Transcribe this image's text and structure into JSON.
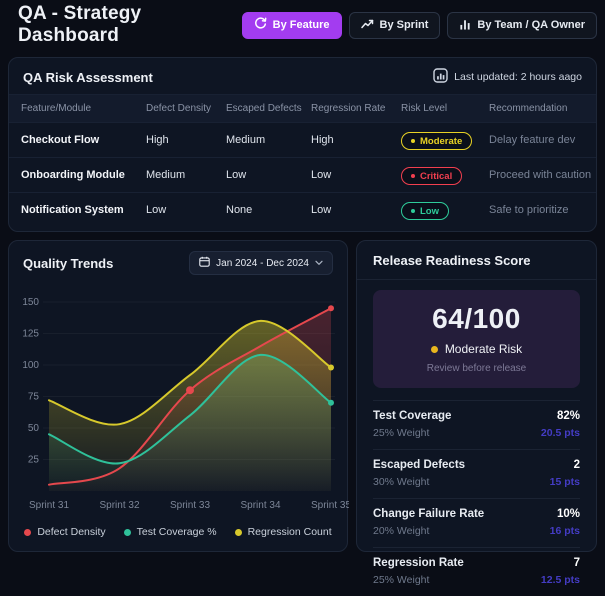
{
  "colors": {
    "accent": "#a33cf0",
    "moderate": "#e8d225",
    "critical": "#f23f4f",
    "low": "#2ecc9a",
    "pts": "#443cc4"
  },
  "header": {
    "title": "QA - Strategy Dashboard",
    "buttons": [
      {
        "label": "By Feature",
        "icon": "refresh-icon",
        "active": true
      },
      {
        "label": "By Sprint",
        "icon": "trend-icon",
        "active": false
      },
      {
        "label": "By Team / QA Owner",
        "icon": "bar-chart-icon",
        "active": false
      }
    ]
  },
  "risk_panel": {
    "title": "QA Risk Assessment",
    "last_updated": "Last updated: 2 hours aago",
    "columns": [
      "Feature/Module",
      "Defect Density",
      "Escaped Defects",
      "Regression Rate",
      "Risk Level",
      "Recommendation"
    ],
    "rows": [
      {
        "feature": "Checkout Flow",
        "defect_density": "High",
        "escaped_defects": "Medium",
        "regression_rate": "High",
        "risk": "Moderate",
        "risk_color": "#e8d225",
        "recommendation": "Delay feature dev"
      },
      {
        "feature": "Onboarding Module",
        "defect_density": "Medium",
        "escaped_defects": "Low",
        "regression_rate": "Low",
        "risk": "Critical",
        "risk_color": "#f23f4f",
        "recommendation": "Proceed with caution"
      },
      {
        "feature": "Notification System",
        "defect_density": "Low",
        "escaped_defects": "None",
        "regression_rate": "Low",
        "risk": "Low",
        "risk_color": "#2ecc9a",
        "recommendation": "Safe to prioritize"
      }
    ]
  },
  "trends_panel": {
    "title": "Quality Trends",
    "date_range": "Jan 2024 - Dec 2024"
  },
  "chart_data": {
    "type": "line",
    "title": "Quality Trends",
    "categories": [
      "Sprint 31",
      "Sprint 32",
      "Sprint 33",
      "Sprint 34",
      "Sprint 35"
    ],
    "series": [
      {
        "name": "Defect Density",
        "color": "#e5484d",
        "fill_opacity": 0.28,
        "values": [
          5,
          18,
          80,
          115,
          145
        ],
        "marker_index": 2
      },
      {
        "name": "Test Coverage %",
        "color": "#2fc19a",
        "fill_opacity": 0.3,
        "values": [
          45,
          22,
          60,
          108,
          70
        ]
      },
      {
        "name": "Regression Count",
        "color": "#d7c92c",
        "fill_opacity": 0.42,
        "values": [
          72,
          53,
          92,
          135,
          98
        ]
      }
    ],
    "ylim": [
      0,
      150
    ],
    "yticks": [
      25,
      50,
      75,
      100,
      125,
      150
    ],
    "grid": true,
    "legend_position": "bottom"
  },
  "readiness_panel": {
    "title": "Release Readiness Score",
    "score": "64/100",
    "risk_label": "Moderate Risk",
    "risk_note": "Review before release",
    "metrics": [
      {
        "label": "Test Coverage",
        "value": "82%",
        "weight": "25% Weight",
        "pts": "20.5 pts"
      },
      {
        "label": "Escaped Defects",
        "value": "2",
        "weight": "30% Weight",
        "pts": "15 pts"
      },
      {
        "label": "Change Failure Rate",
        "value": "10%",
        "weight": "20% Weight",
        "pts": "16 pts"
      },
      {
        "label": "Regression Rate",
        "value": "7",
        "weight": "25% Weight",
        "pts": "12.5 pts"
      }
    ]
  }
}
